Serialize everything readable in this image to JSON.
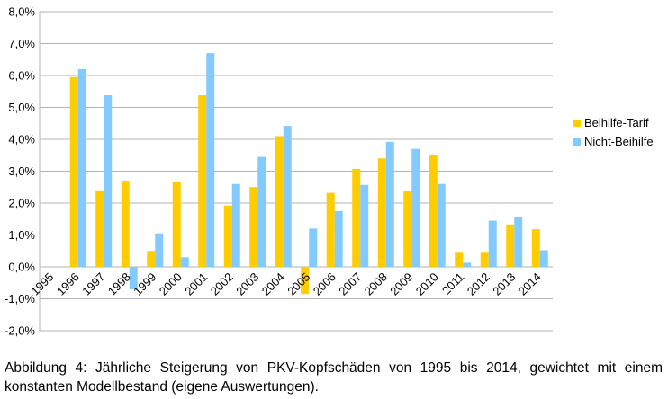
{
  "chart_data": {
    "type": "bar",
    "categories": [
      "1995",
      "1996",
      "1997",
      "1998",
      "1999",
      "2000",
      "2001",
      "2002",
      "2003",
      "2004",
      "2005",
      "2006",
      "2007",
      "2008",
      "2009",
      "2010",
      "2011",
      "2012",
      "2013",
      "2014"
    ],
    "series": [
      {
        "name": "Beihilfe-Tarif",
        "color": "#FFCC00",
        "values": [
          null,
          5.95,
          2.4,
          2.7,
          0.5,
          2.65,
          5.38,
          1.92,
          2.5,
          4.1,
          -0.85,
          2.32,
          3.07,
          3.4,
          2.37,
          3.52,
          0.47,
          0.47,
          1.33,
          1.18
        ]
      },
      {
        "name": "Nicht-Beihilfe",
        "color": "#83CAFF",
        "values": [
          null,
          6.2,
          5.38,
          -0.7,
          1.05,
          0.3,
          6.7,
          2.6,
          3.45,
          4.42,
          1.2,
          1.75,
          2.57,
          3.92,
          3.7,
          2.6,
          0.13,
          1.45,
          1.55,
          0.52
        ]
      }
    ],
    "y_ticks": [
      "8,0%",
      "7,0%",
      "6,0%",
      "5,0%",
      "4,0%",
      "3,0%",
      "2,0%",
      "1,0%",
      "0,0%",
      "-1,0%",
      "-2,0%"
    ],
    "ylim": [
      -2,
      8
    ],
    "y_unit": "percent",
    "grid": true,
    "legend_position": "right"
  },
  "caption": "Abbildung 4: Jährliche Steigerung von PKV-Kopfschäden von 1995 bis 2014, gewichtet mit einem konstanten Modellbestand (eigene Auswertungen)."
}
